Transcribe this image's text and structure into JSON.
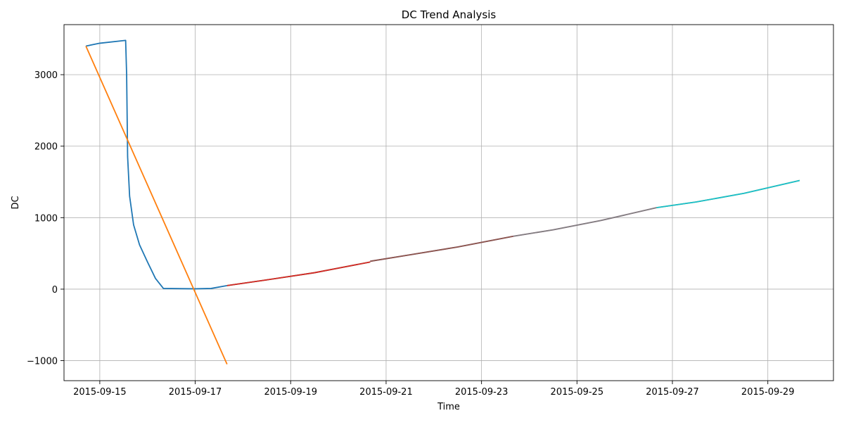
{
  "chart_data": {
    "type": "line",
    "title": "DC Trend Analysis",
    "xlabel": "Time",
    "ylabel": "DC",
    "xlim": [
      "2015-09-14 06:00",
      "2015-09-30 09:00"
    ],
    "ylim": [
      -1280,
      3700
    ],
    "grid": true,
    "x_ticks": [
      "2015-09-15",
      "2015-09-17",
      "2015-09-19",
      "2015-09-21",
      "2015-09-23",
      "2015-09-25",
      "2015-09-27",
      "2015-09-29"
    ],
    "y_ticks": [
      {
        "value": -1000,
        "label": "−1000"
      },
      {
        "value": 0,
        "label": "0"
      },
      {
        "value": 1000,
        "label": "1000"
      },
      {
        "value": 2000,
        "label": "2000"
      },
      {
        "value": 3000,
        "label": "3000"
      }
    ],
    "series": [
      {
        "color": "#1f77b4",
        "points": [
          [
            "2015-09-14 17:00",
            3400
          ],
          [
            "2015-09-15 00:00",
            3440
          ],
          [
            "2015-09-15 13:00",
            3480
          ],
          [
            "2015-09-15 13:30",
            3000
          ],
          [
            "2015-09-15 14:00",
            1850
          ],
          [
            "2015-09-15 15:00",
            1300
          ],
          [
            "2015-09-15 17:00",
            900
          ],
          [
            "2015-09-15 20:00",
            620
          ],
          [
            "2015-09-16 00:00",
            380
          ],
          [
            "2015-09-16 04:00",
            150
          ],
          [
            "2015-09-16 08:00",
            10
          ],
          [
            "2015-09-17 00:00",
            5
          ],
          [
            "2015-09-17 08:00",
            10
          ],
          [
            "2015-09-17 16:00",
            50
          ]
        ]
      },
      {
        "color": "#ff7f0e",
        "points": [
          [
            "2015-09-14 17:00",
            3400
          ],
          [
            "2015-09-17 16:00",
            -1050
          ]
        ]
      },
      {
        "color": "#2ca02c",
        "points": [
          [
            "2015-09-17 16:00",
            50
          ],
          [
            "2015-09-18 12:00",
            130
          ],
          [
            "2015-09-19 12:00",
            230
          ],
          [
            "2015-09-20 16:00",
            380
          ]
        ]
      },
      {
        "color": "#d62728",
        "points": [
          [
            "2015-09-17 16:00",
            50
          ],
          [
            "2015-09-18 12:00",
            130
          ],
          [
            "2015-09-19 12:00",
            230
          ],
          [
            "2015-09-20 16:00",
            380
          ]
        ]
      },
      {
        "color": "#9467bd",
        "points": [
          [
            "2015-09-20 16:00",
            390
          ],
          [
            "2015-09-21 12:00",
            480
          ],
          [
            "2015-09-22 12:00",
            590
          ],
          [
            "2015-09-23 16:00",
            740
          ]
        ]
      },
      {
        "color": "#8c564b",
        "points": [
          [
            "2015-09-20 16:00",
            390
          ],
          [
            "2015-09-21 12:00",
            480
          ],
          [
            "2015-09-22 12:00",
            590
          ],
          [
            "2015-09-23 16:00",
            740
          ]
        ]
      },
      {
        "color": "#e377c2",
        "points": [
          [
            "2015-09-23 16:00",
            740
          ],
          [
            "2015-09-24 12:00",
            830
          ],
          [
            "2015-09-25 12:00",
            960
          ],
          [
            "2015-09-26 16:00",
            1140
          ]
        ]
      },
      {
        "color": "#7f7f7f",
        "points": [
          [
            "2015-09-23 16:00",
            740
          ],
          [
            "2015-09-24 12:00",
            830
          ],
          [
            "2015-09-25 12:00",
            960
          ],
          [
            "2015-09-26 16:00",
            1140
          ]
        ]
      },
      {
        "color": "#bcbd22",
        "points": [
          [
            "2015-09-26 16:00",
            1140
          ],
          [
            "2015-09-27 12:00",
            1220
          ],
          [
            "2015-09-28 12:00",
            1340
          ],
          [
            "2015-09-29 16:00",
            1520
          ]
        ]
      },
      {
        "color": "#17becf",
        "points": [
          [
            "2015-09-26 16:00",
            1140
          ],
          [
            "2015-09-27 12:00",
            1220
          ],
          [
            "2015-09-28 12:00",
            1340
          ],
          [
            "2015-09-29 16:00",
            1520
          ]
        ]
      }
    ]
  }
}
